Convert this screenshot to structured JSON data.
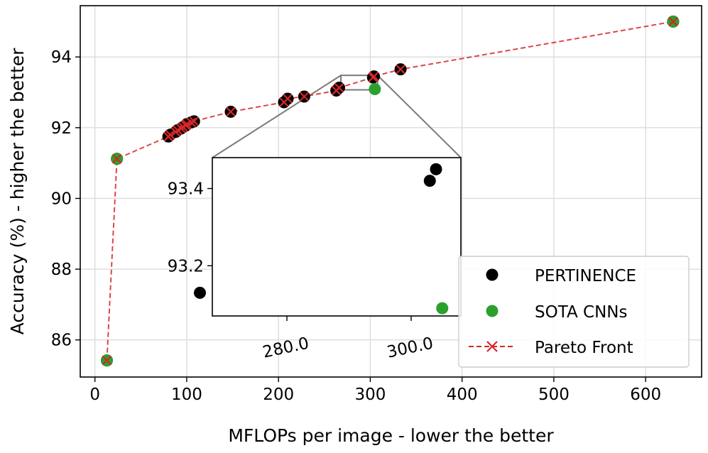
{
  "chart_data": {
    "type": "scatter",
    "xlabel": "MFLOPs per image - lower the better",
    "ylabel": "Accuracy (%) - higher the better",
    "xlim": [
      -16,
      661
    ],
    "ylim": [
      84.95,
      95.45
    ],
    "xticks": [
      0,
      100,
      200,
      300,
      400,
      500,
      600
    ],
    "yticks": [
      86,
      88,
      90,
      92,
      94
    ],
    "x_tick_labels": [
      "0",
      "100",
      "200",
      "300",
      "400",
      "500",
      "600"
    ],
    "y_tick_labels": [
      "86",
      "88",
      "90",
      "92",
      "94"
    ],
    "grid": true,
    "legend_position": "lower-right",
    "series": [
      {
        "name": "PERTINENCE",
        "kind": "scatter",
        "color": "#000000",
        "x": [
          13,
          24,
          80,
          82,
          88,
          90,
          94,
          96,
          99,
          100,
          105,
          108,
          148,
          206,
          210,
          228,
          263,
          266,
          303,
          304,
          333,
          630
        ],
        "y": [
          85.42,
          91.12,
          91.75,
          91.8,
          91.88,
          91.93,
          91.98,
          92.02,
          92.06,
          92.1,
          92.15,
          92.18,
          92.45,
          92.72,
          92.82,
          92.88,
          93.05,
          93.13,
          93.42,
          93.45,
          93.65,
          95.0
        ]
      },
      {
        "name": "SOTA CNNs",
        "kind": "scatter",
        "color": "#2ca02c",
        "x": [
          13,
          24,
          305,
          630
        ],
        "y": [
          85.42,
          91.12,
          93.09,
          95.0
        ]
      },
      {
        "name": "Pareto Front",
        "kind": "line",
        "color": "#d62728",
        "x": [
          13,
          24,
          80,
          82,
          88,
          90,
          94,
          96,
          99,
          100,
          105,
          108,
          148,
          206,
          210,
          228,
          263,
          266,
          303,
          304,
          333,
          630
        ],
        "y": [
          85.42,
          91.12,
          91.75,
          91.8,
          91.88,
          91.93,
          91.98,
          92.02,
          92.06,
          92.1,
          92.15,
          92.18,
          92.45,
          92.72,
          92.82,
          92.88,
          93.05,
          93.13,
          93.42,
          93.45,
          93.65,
          95.0
        ]
      }
    ],
    "inset": {
      "xlim": [
        268,
        308
      ],
      "ylim": [
        93.07,
        93.48
      ],
      "xticks": [
        280,
        300
      ],
      "yticks": [
        93.2,
        93.4
      ],
      "x_tick_labels": [
        "280.0",
        "300.0"
      ],
      "y_tick_labels": [
        "93.2",
        "93.4"
      ],
      "points": [
        {
          "series": "PERTINENCE",
          "x": 266,
          "y": 93.13
        },
        {
          "series": "PERTINENCE",
          "x": 303,
          "y": 93.42
        },
        {
          "series": "PERTINENCE",
          "x": 304,
          "y": 93.45
        },
        {
          "series": "SOTA CNNs",
          "x": 305,
          "y": 93.09
        }
      ]
    }
  }
}
